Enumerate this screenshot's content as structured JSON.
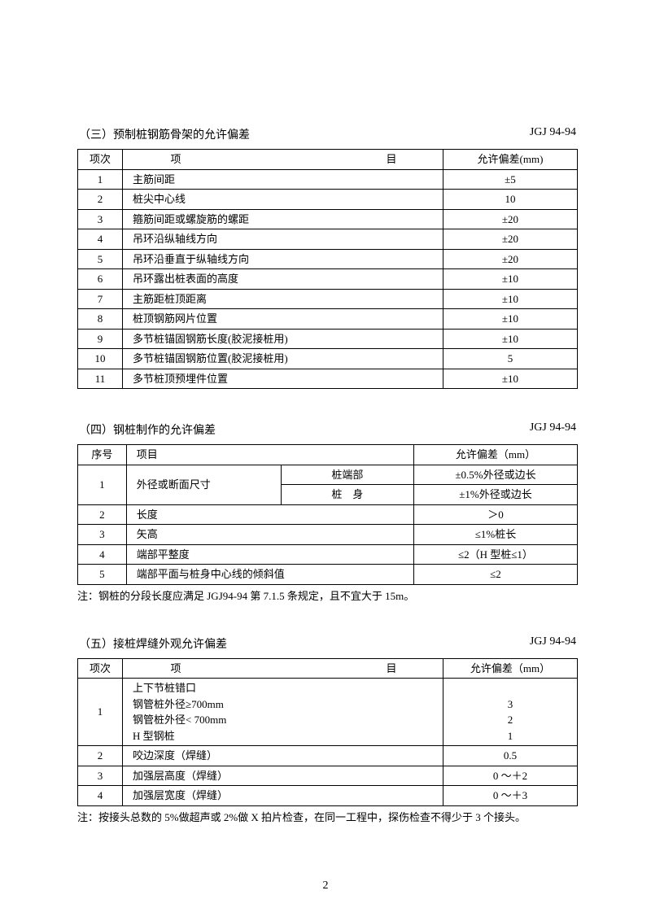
{
  "pageNumber": "2",
  "sectionThree": {
    "title": "（三）预制桩钢筋骨架的允许偏差",
    "code": "JGJ 94-94",
    "headers": {
      "col1": "项次",
      "col2": "项　　　　目",
      "col3": "允许偏差(mm)"
    },
    "rows": [
      {
        "n": "1",
        "item": "主筋间距",
        "tol": "±5"
      },
      {
        "n": "2",
        "item": "桩尖中心线",
        "tol": "10"
      },
      {
        "n": "3",
        "item": "箍筋间距或螺旋筋的螺距",
        "tol": "±20"
      },
      {
        "n": "4",
        "item": "吊环沿纵轴线方向",
        "tol": "±20"
      },
      {
        "n": "5",
        "item": "吊环沿垂直于纵轴线方向",
        "tol": "±20"
      },
      {
        "n": "6",
        "item": "吊环露出桩表面的高度",
        "tol": "±10"
      },
      {
        "n": "7",
        "item": "主筋距桩顶距离",
        "tol": "±10"
      },
      {
        "n": "8",
        "item": "桩顶钢筋网片位置",
        "tol": "±10"
      },
      {
        "n": "9",
        "item": "多节桩锚固钢筋长度(胶泥接桩用)",
        "tol": "±10"
      },
      {
        "n": "10",
        "item": "多节桩锚固钢筋位置(胶泥接桩用)",
        "tol": "5"
      },
      {
        "n": "11",
        "item": "多节桩顶预埋件位置",
        "tol": "±10"
      }
    ]
  },
  "sectionFour": {
    "title": "（四）钢桩制作的允许偏差",
    "code": "JGJ 94-94",
    "headers": {
      "col1": "序号",
      "col2": "项目",
      "col3": "允许偏差（mm）"
    },
    "r1": {
      "n": "1",
      "item": "外径或断面尺寸",
      "sub1": "桩端部",
      "tol1": "±0.5%外径或边长",
      "sub2": "桩　身",
      "tol2": "±1%外径或边长"
    },
    "r2": {
      "n": "2",
      "item": "长度",
      "tol": "＞0"
    },
    "r3": {
      "n": "3",
      "item": "矢高",
      "tol": "≤1%桩长"
    },
    "r4": {
      "n": "4",
      "item": "端部平整度",
      "tol": "≤2（H 型桩≤1）"
    },
    "r5": {
      "n": "5",
      "item": "端部平面与桩身中心线的倾斜值",
      "tol": "≤2"
    },
    "note": "注：钢桩的分段长度应满足 JGJ94-94 第 7.1.5 条规定，且不宜大于 15m。"
  },
  "sectionFive": {
    "title": "（五）接桩焊缝外观允许偏差",
    "code": "JGJ 94-94",
    "headers": {
      "col1": "项次",
      "col2": "项　　　　目",
      "col3": "允许偏差（mm）"
    },
    "r1": {
      "n": "1",
      "l1": "上下节桩错口",
      "l2": "钢管桩外径≥700mm",
      "l3": "钢管桩外径< 700mm",
      "l4": "H 型钢桩",
      "t2": "3",
      "t3": "2",
      "t4": "1"
    },
    "r2": {
      "n": "2",
      "item": "咬边深度（焊缝）",
      "tol": "0.5"
    },
    "r3": {
      "n": "3",
      "item": "加强层高度（焊缝）",
      "tol": "0 ～＋2"
    },
    "r4": {
      "n": "4",
      "item": "加强层宽度（焊缝）",
      "tol": "0 ～＋3"
    },
    "note": "注：按接头总数的 5%做超声或 2%做 X 拍片检查，在同一工程中，探伤检查不得少于 3 个接头。"
  }
}
